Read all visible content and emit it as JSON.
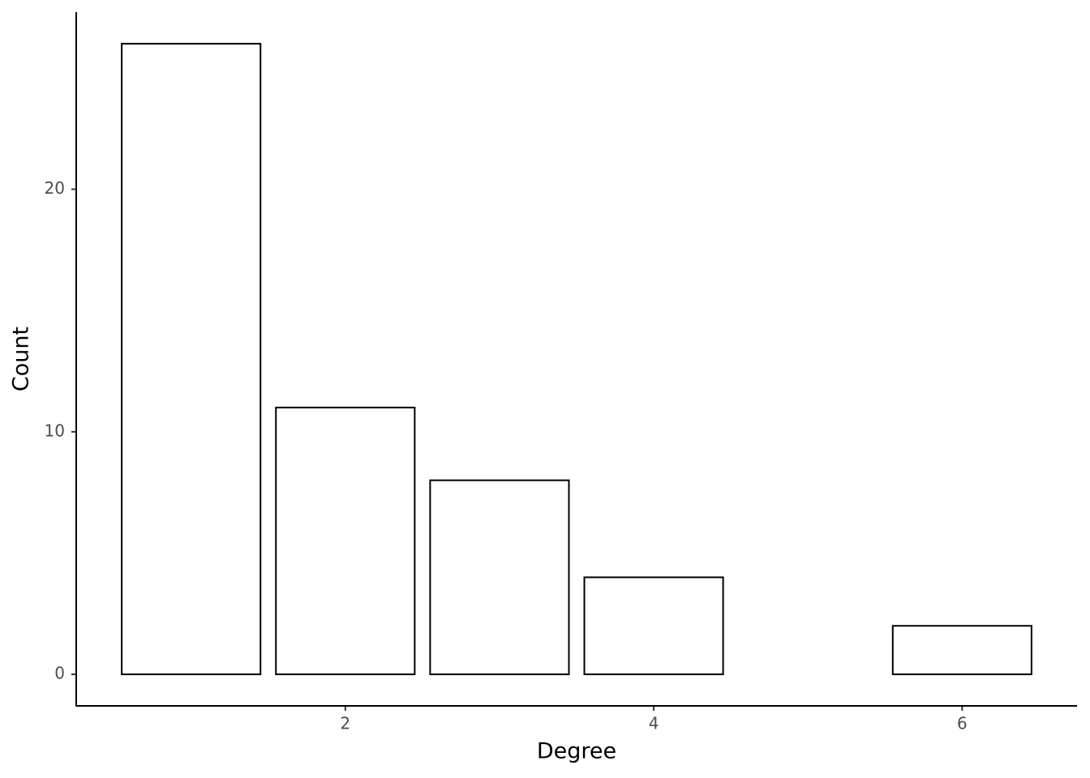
{
  "chart_data": {
    "type": "bar",
    "x_label": "Degree",
    "y_label": "Count",
    "x": [
      1,
      2,
      3,
      4,
      6
    ],
    "values": [
      26,
      11,
      8,
      4,
      2
    ],
    "color": "#ffffff",
    "edge_color": "#000000",
    "xlim": [
      0.255,
      6.745
    ],
    "xticks": [
      2,
      4,
      6
    ],
    "ylim": [
      -1.3,
      27.3
    ],
    "yticks": [
      0,
      10,
      20
    ],
    "grid": false
  }
}
